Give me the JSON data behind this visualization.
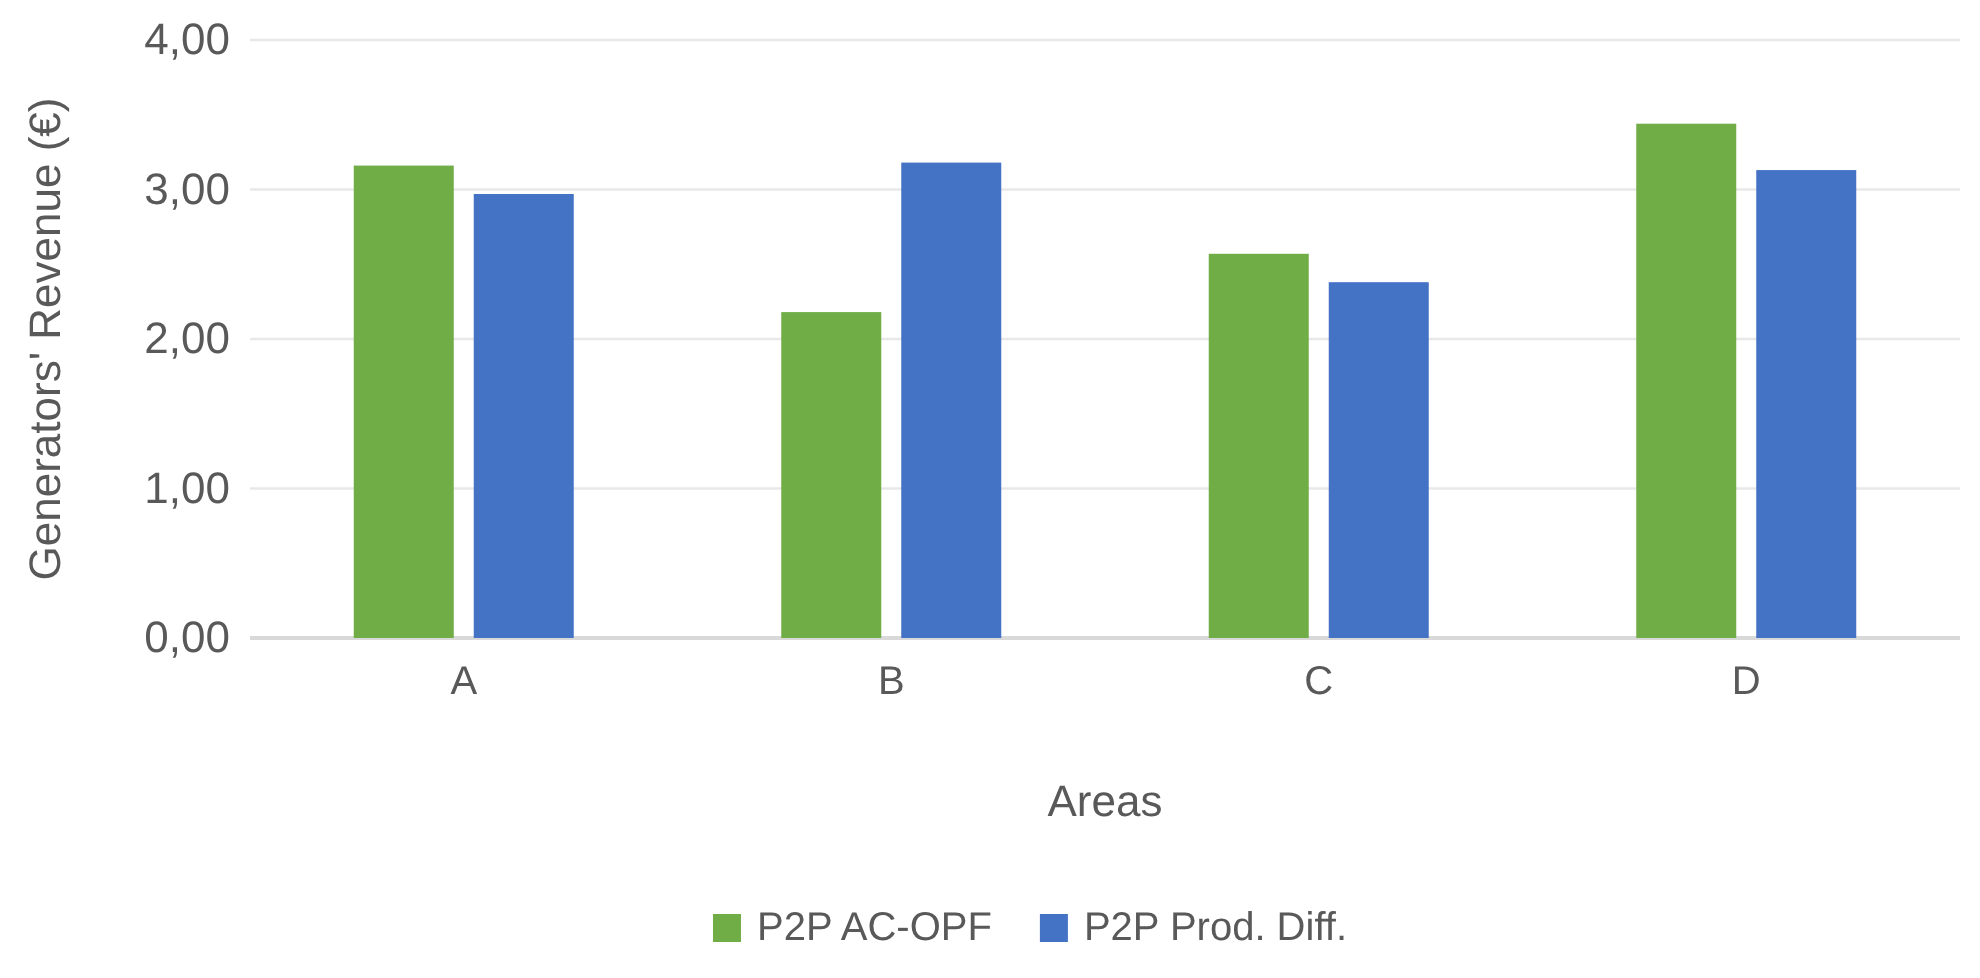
{
  "chart_data": {
    "type": "bar",
    "xlabel": "Areas",
    "ylabel": "Generators' Revenue (€)",
    "categories": [
      "A",
      "B",
      "C",
      "D"
    ],
    "series": [
      {
        "name": "P2P AC-OPF",
        "color": "#70ad47",
        "values": [
          3.16,
          2.18,
          2.57,
          3.44
        ]
      },
      {
        "name": "P2P Prod. Diff.",
        "color": "#4472c4",
        "values": [
          2.97,
          3.18,
          2.38,
          3.13
        ]
      }
    ],
    "ylim": [
      0,
      4
    ],
    "yticks": [
      {
        "value": 0,
        "label": "0,00"
      },
      {
        "value": 1,
        "label": "1,00"
      },
      {
        "value": 2,
        "label": "2,00"
      },
      {
        "value": 3,
        "label": "3,00"
      },
      {
        "value": 4,
        "label": "4,00"
      }
    ],
    "grid": "y",
    "legend": "bottom"
  }
}
